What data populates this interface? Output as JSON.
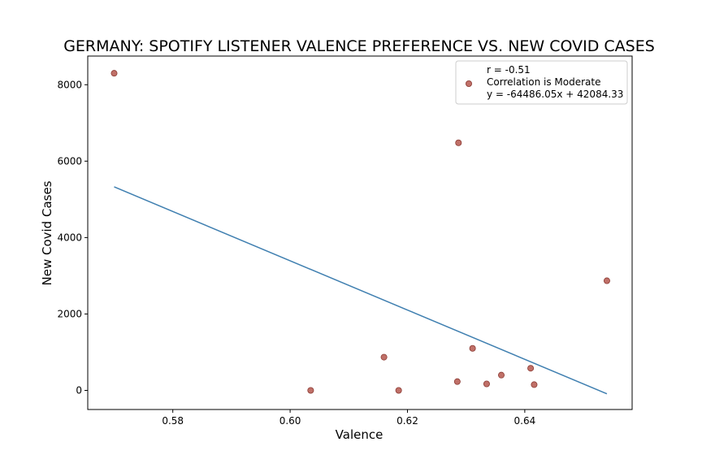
{
  "chart_data": {
    "type": "scatter",
    "title": "GERMANY: SPOTIFY LISTENER VALENCE PREFERENCE VS. NEW COVID CASES",
    "xlabel": "Valence",
    "ylabel": "New Covid Cases",
    "xlim": [
      0.5655,
      0.6583
    ],
    "ylim": [
      -500,
      8750
    ],
    "xticks": [
      0.58,
      0.6,
      0.62,
      0.64
    ],
    "xtick_labels": [
      "0.58",
      "0.60",
      "0.62",
      "0.64"
    ],
    "yticks": [
      0,
      2000,
      4000,
      6000,
      8000
    ],
    "ytick_labels": [
      "0",
      "2000",
      "4000",
      "6000",
      "8000"
    ],
    "grid": false,
    "legend_position": "top-right",
    "points": [
      {
        "x": 0.57,
        "y": 8300
      },
      {
        "x": 0.6035,
        "y": 0
      },
      {
        "x": 0.616,
        "y": 870
      },
      {
        "x": 0.6185,
        "y": 0
      },
      {
        "x": 0.6285,
        "y": 230
      },
      {
        "x": 0.6287,
        "y": 6480
      },
      {
        "x": 0.6311,
        "y": 1100
      },
      {
        "x": 0.6335,
        "y": 170
      },
      {
        "x": 0.636,
        "y": 400
      },
      {
        "x": 0.641,
        "y": 580
      },
      {
        "x": 0.6416,
        "y": 150
      },
      {
        "x": 0.654,
        "y": 2870
      }
    ],
    "regression": {
      "slope": -64486.05,
      "intercept": 42084.33,
      "x_range": [
        0.57,
        0.654
      ]
    },
    "legend": {
      "lines": [
        "r = -0.51",
        "Correlation is Moderate",
        "y = -64486.05x + 42084.33"
      ]
    },
    "colors": {
      "point_fill": "#c07068",
      "point_edge": "#8b3a33",
      "line": "#3f7fb0"
    }
  }
}
